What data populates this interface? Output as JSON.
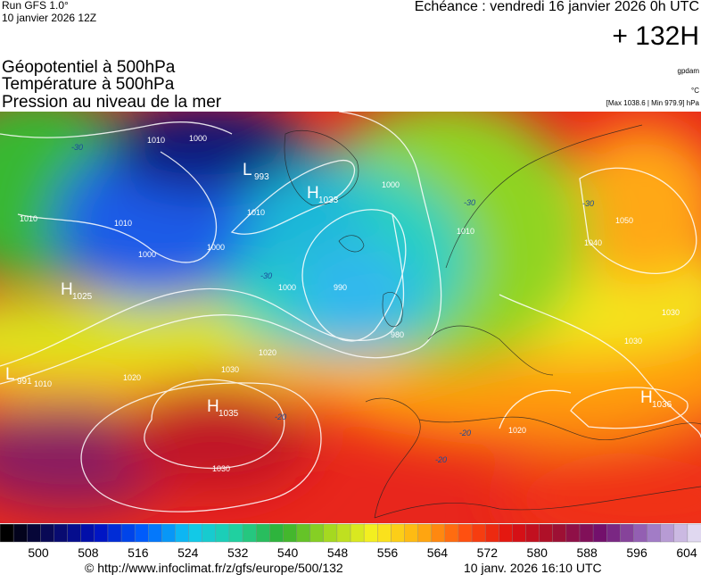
{
  "header": {
    "run": "Run GFS 1.0°",
    "run_date": "10 janvier 2026 12Z",
    "echeance": "Echéance : vendredi 16 janvier 2026 0h UTC",
    "lead": "+ 132H",
    "titles": [
      "Géopotentiel à 500hPa",
      "Température à 500hPa",
      "Pression au niveau de la mer"
    ],
    "unit_geopotential": "gpdam",
    "unit_temperature": "°C",
    "extremes": "[Max 1038.6 | Min 979.9] hPa"
  },
  "map": {
    "centers": [
      {
        "letter": "L",
        "value": "993"
      },
      {
        "letter": "H",
        "value": "1033"
      },
      {
        "letter": "H",
        "value": "1025"
      },
      {
        "letter": "L",
        "value": "991"
      },
      {
        "letter": "H",
        "value": "1035"
      },
      {
        "letter": "H",
        "value": "1036"
      }
    ],
    "isobar_labels": [
      "1010",
      "1000",
      "1010",
      "1010",
      "1000",
      "1000",
      "1010",
      "1000",
      "1000",
      "990",
      "980",
      "1050",
      "1040",
      "1030",
      "1030",
      "1020",
      "1030",
      "1020",
      "1010",
      "1030",
      "1020",
      "1010"
    ],
    "temperature_labels": [
      "-30",
      "-30",
      "-30",
      "-30",
      "-20",
      "-20",
      "-20"
    ]
  },
  "colorbar": {
    "ticks": [
      500,
      508,
      516,
      524,
      532,
      540,
      548,
      556,
      564,
      572,
      580,
      588,
      596,
      604
    ]
  },
  "footer": {
    "source": "© http://www.infoclimat.fr/z/gfs/europe/500/132",
    "timestamp": "10 janv. 2026 16:10 UTC"
  }
}
